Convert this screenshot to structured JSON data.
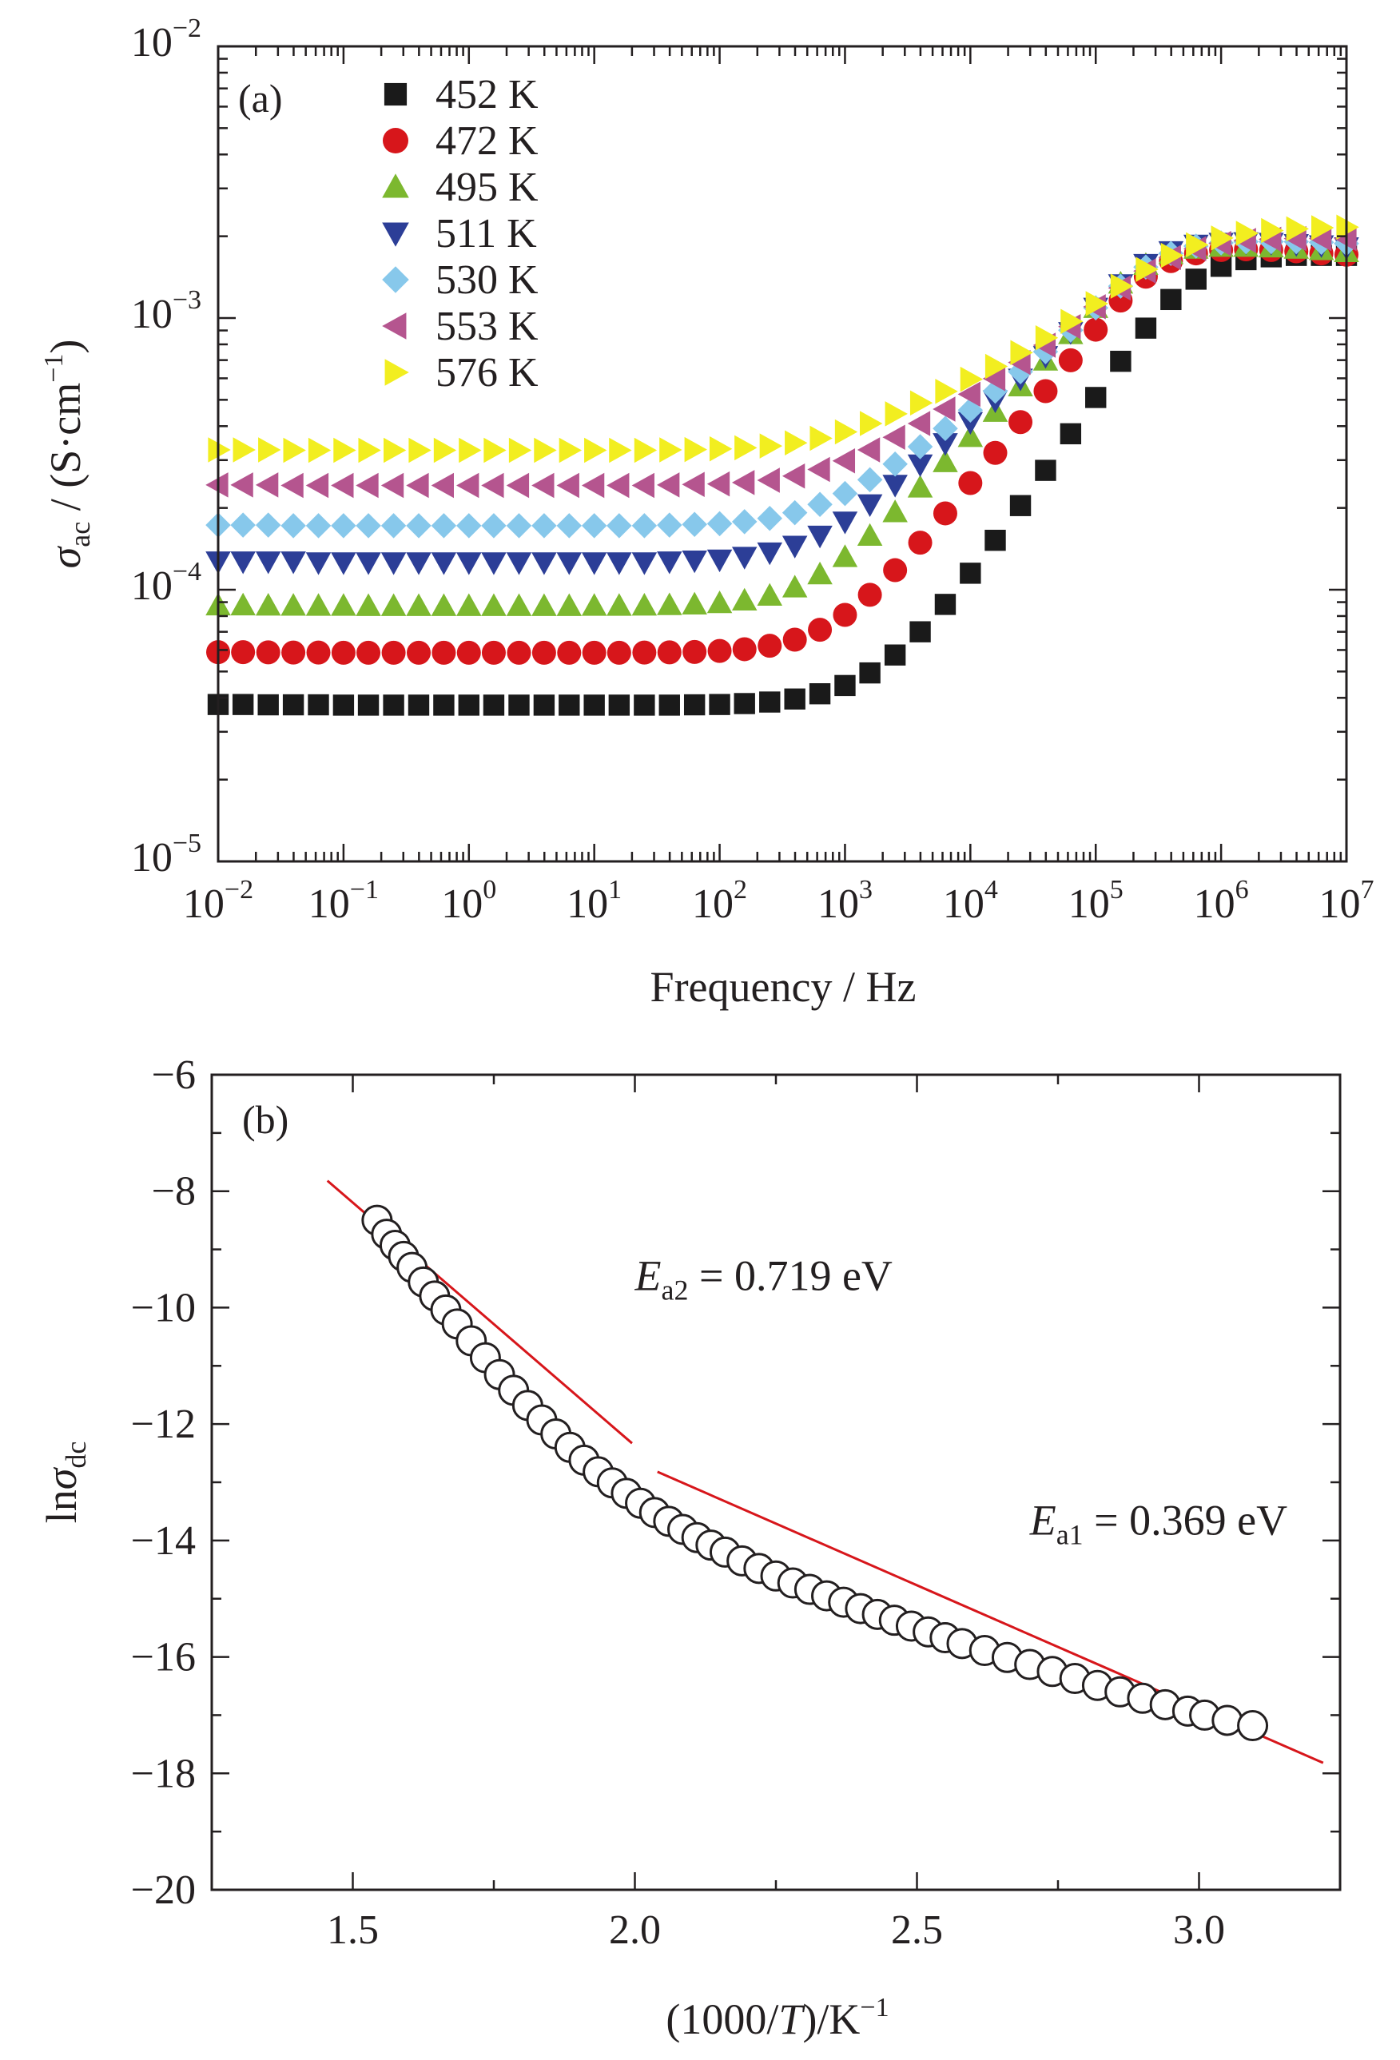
{
  "chart_data": [
    {
      "type": "scatter",
      "panel_label": "(a)",
      "title": "",
      "xlabel": "Frequency / Hz",
      "ylabel_symbol": "σ",
      "ylabel_subscript": "ac",
      "ylabel_unit": " / (S·cm",
      "ylabel_unit_exp": "−1",
      "ylabel_unit_close": ")",
      "xscale": "log",
      "yscale": "log",
      "xlim": [
        0.01,
        10000000
      ],
      "ylim": [
        1e-05,
        0.01
      ],
      "x_tick_labels": [
        {
          "base": "10",
          "exp": "−2"
        },
        {
          "base": "10",
          "exp": "−1"
        },
        {
          "base": "10",
          "exp": "0"
        },
        {
          "base": "10",
          "exp": "1"
        },
        {
          "base": "10",
          "exp": "2"
        },
        {
          "base": "10",
          "exp": "3"
        },
        {
          "base": "10",
          "exp": "4"
        },
        {
          "base": "10",
          "exp": "5"
        },
        {
          "base": "10",
          "exp": "6"
        },
        {
          "base": "10",
          "exp": "7"
        }
      ],
      "y_tick_labels": [
        {
          "base": "10",
          "exp": "−5"
        },
        {
          "base": "10",
          "exp": "−4"
        },
        {
          "base": "10",
          "exp": "−3"
        },
        {
          "base": "10",
          "exp": "−2"
        }
      ],
      "legend_position": "top-left",
      "x": [
        0.01,
        0.0158,
        0.0251,
        0.0398,
        0.0631,
        0.1,
        0.158,
        0.251,
        0.398,
        0.631,
        1,
        1.58,
        2.51,
        3.98,
        6.31,
        10,
        15.8,
        25.1,
        39.8,
        63.1,
        100,
        158,
        251,
        398,
        631,
        1000,
        1580,
        2510,
        3980,
        6310,
        10000,
        15800,
        25100,
        39800,
        63100,
        100000,
        158000,
        251000,
        398000,
        631000,
        1000000,
        1580000,
        2510000,
        3980000,
        6310000,
        10000000
      ],
      "series": [
        {
          "name": "452 K",
          "marker": "square",
          "color": "#1a1a1a",
          "values": [
            3.78e-05,
            3.78e-05,
            3.77e-05,
            3.77e-05,
            3.77e-05,
            3.76e-05,
            3.76e-05,
            3.76e-05,
            3.76e-05,
            3.76e-05,
            3.76e-05,
            3.76e-05,
            3.76e-05,
            3.76e-05,
            3.76e-05,
            3.76e-05,
            3.76e-05,
            3.76e-05,
            3.76e-05,
            3.77e-05,
            3.78e-05,
            3.81e-05,
            3.86e-05,
            3.96e-05,
            4.14e-05,
            4.44e-05,
            4.94e-05,
            5.75e-05,
            7e-05,
            8.83e-05,
            0.000115,
            0.000152,
            0.000204,
            0.000275,
            0.000375,
            0.00051,
            0.000693,
            0.000918,
            0.00117,
            0.00139,
            0.00155,
            0.00164,
            0.00168,
            0.0017,
            0.0017,
            0.0017
          ]
        },
        {
          "name": "472 K",
          "marker": "circle",
          "color": "#d7161b",
          "values": [
            5.89e-05,
            5.89e-05,
            5.88e-05,
            5.87e-05,
            5.87e-05,
            5.86e-05,
            5.86e-05,
            5.86e-05,
            5.86e-05,
            5.86e-05,
            5.86e-05,
            5.86e-05,
            5.86e-05,
            5.86e-05,
            5.86e-05,
            5.86e-05,
            5.86e-05,
            5.87e-05,
            5.88e-05,
            5.9e-05,
            5.95e-05,
            6.04e-05,
            6.22e-05,
            6.55e-05,
            7.12e-05,
            8.08e-05,
            9.58e-05,
            0.000118,
            0.000149,
            0.000191,
            0.000247,
            0.000319,
            0.000414,
            0.000538,
            0.000699,
            0.000906,
            0.00116,
            0.00142,
            0.00162,
            0.00173,
            0.00178,
            0.00179,
            0.00178,
            0.00176,
            0.00173,
            0.00171
          ]
        },
        {
          "name": "495 K",
          "marker": "triangle-up",
          "color": "#7cb82f",
          "values": [
            8.76e-05,
            8.76e-05,
            8.75e-05,
            8.74e-05,
            8.73e-05,
            8.73e-05,
            8.72e-05,
            8.72e-05,
            8.72e-05,
            8.72e-05,
            8.72e-05,
            8.72e-05,
            8.72e-05,
            8.72e-05,
            8.72e-05,
            8.73e-05,
            8.73e-05,
            8.75e-05,
            8.78e-05,
            8.83e-05,
            8.93e-05,
            9.13e-05,
            9.51e-05,
            0.000102,
            0.000114,
            0.000132,
            0.000158,
            0.000193,
            0.000238,
            0.000295,
            0.000365,
            0.000452,
            0.000561,
            0.000698,
            0.000873,
            0.00109,
            0.00134,
            0.00157,
            0.00172,
            0.0018,
            0.00183,
            0.00183,
            0.00182,
            0.0018,
            0.00178,
            0.00175
          ]
        },
        {
          "name": "511 K",
          "marker": "triangle-down",
          "color": "#2c3e97",
          "values": [
            0.000127,
            0.000127,
            0.000127,
            0.000127,
            0.000126,
            0.000126,
            0.000126,
            0.000126,
            0.000126,
            0.000126,
            0.000126,
            0.000126,
            0.000126,
            0.000126,
            0.000126,
            0.000126,
            0.000126,
            0.000126,
            0.000127,
            0.000128,
            0.000129,
            0.000132,
            0.000137,
            0.000145,
            0.000158,
            0.000178,
            0.000206,
            0.000243,
            0.000289,
            0.000346,
            0.000414,
            0.000497,
            0.000598,
            0.000724,
            0.000887,
            0.00109,
            0.00133,
            0.00158,
            0.00176,
            0.00186,
            0.00189,
            0.0019,
            0.00189,
            0.00187,
            0.00185,
            0.00182
          ]
        },
        {
          "name": "530 K",
          "marker": "diamond",
          "color": "#87c8eb",
          "values": [
            0.000173,
            0.000173,
            0.000173,
            0.000172,
            0.000172,
            0.000172,
            0.000172,
            0.000172,
            0.000172,
            0.000172,
            0.000172,
            0.000172,
            0.000172,
            0.000172,
            0.000172,
            0.000172,
            0.000172,
            0.000172,
            0.000173,
            0.000174,
            0.000175,
            0.000178,
            0.000183,
            0.000192,
            0.000206,
            0.000226,
            0.000254,
            0.00029,
            0.000336,
            0.000392,
            0.000458,
            0.000538,
            0.000634,
            0.000752,
            0.000902,
            0.00109,
            0.00131,
            0.00154,
            0.00173,
            0.00184,
            0.00189,
            0.00191,
            0.00191,
            0.00191,
            0.0019,
            0.00188
          ]
        },
        {
          "name": "553 K",
          "marker": "triangle-left",
          "color": "#b5558f",
          "values": [
            0.000243,
            0.000243,
            0.000243,
            0.000242,
            0.000242,
            0.000242,
            0.000242,
            0.000242,
            0.000242,
            0.000242,
            0.000242,
            0.000242,
            0.000242,
            0.000242,
            0.000242,
            0.000242,
            0.000242,
            0.000242,
            0.000243,
            0.000244,
            0.000245,
            0.000248,
            0.000253,
            0.000262,
            0.000277,
            0.000298,
            0.000327,
            0.000364,
            0.000409,
            0.000462,
            0.000524,
            0.000598,
            0.000686,
            0.000794,
            0.00093,
            0.0011,
            0.00129,
            0.00149,
            0.00167,
            0.0018,
            0.00188,
            0.00193,
            0.00195,
            0.00196,
            0.00196,
            0.00196
          ]
        },
        {
          "name": "576 K",
          "marker": "triangle-right",
          "color": "#f2ee20",
          "values": [
            0.000327,
            0.000327,
            0.000327,
            0.000326,
            0.000326,
            0.000326,
            0.000326,
            0.000326,
            0.000326,
            0.000326,
            0.000326,
            0.000326,
            0.000326,
            0.000326,
            0.000326,
            0.000326,
            0.000326,
            0.000326,
            0.000327,
            0.000328,
            0.00033,
            0.000333,
            0.000338,
            0.000347,
            0.000361,
            0.000381,
            0.000409,
            0.000444,
            0.000487,
            0.000537,
            0.000595,
            0.000664,
            0.000746,
            0.000846,
            0.000972,
            0.00113,
            0.00131,
            0.00151,
            0.0017,
            0.00186,
            0.00197,
            0.00205,
            0.0021,
            0.00213,
            0.00215,
            0.00216
          ]
        }
      ]
    },
    {
      "type": "scatter",
      "panel_label": "(b)",
      "title": "",
      "xlabel_pre": "(1000/",
      "xlabel_italic": "T",
      "xlabel_post": ")/K",
      "xlabel_exp": "−1",
      "ylabel_pre": "ln",
      "ylabel_symbol": "σ",
      "ylabel_subscript": "dc",
      "xlim": [
        1.25,
        3.25
      ],
      "ylim": [
        -20,
        -6
      ],
      "x_ticks": [
        1.5,
        2.0,
        2.5,
        3.0
      ],
      "x_tick_labels": [
        "1.5",
        "2.0",
        "2.5",
        "3.0"
      ],
      "y_ticks": [
        -20,
        -18,
        -16,
        -14,
        -12,
        -10,
        -8,
        -6
      ],
      "y_tick_labels": [
        "−20",
        "−18",
        "−16",
        "−14",
        "−12",
        "−10",
        "−8",
        "−6"
      ],
      "series": [
        {
          "name": "",
          "marker": "open-circle",
          "color": "#231f20",
          "x": [
            1.543,
            1.56,
            1.575,
            1.59,
            1.605,
            1.625,
            1.645,
            1.665,
            1.685,
            1.71,
            1.735,
            1.76,
            1.785,
            1.81,
            1.835,
            1.86,
            1.885,
            1.91,
            1.935,
            1.96,
            1.985,
            2.01,
            2.035,
            2.06,
            2.085,
            2.11,
            2.135,
            2.16,
            2.19,
            2.22,
            2.25,
            2.28,
            2.31,
            2.34,
            2.37,
            2.4,
            2.43,
            2.46,
            2.49,
            2.52,
            2.55,
            2.58,
            2.62,
            2.66,
            2.7,
            2.74,
            2.78,
            2.82,
            2.86,
            2.9,
            2.94,
            2.98,
            3.01,
            3.05,
            3.095
          ],
          "y": [
            -8.5,
            -8.74,
            -8.93,
            -9.12,
            -9.31,
            -9.56,
            -9.8,
            -10.04,
            -10.28,
            -10.57,
            -10.86,
            -11.15,
            -11.42,
            -11.68,
            -11.93,
            -12.17,
            -12.4,
            -12.62,
            -12.82,
            -13.01,
            -13.19,
            -13.36,
            -13.52,
            -13.67,
            -13.81,
            -13.95,
            -14.08,
            -14.2,
            -14.35,
            -14.48,
            -14.61,
            -14.73,
            -14.84,
            -14.95,
            -15.06,
            -15.17,
            -15.27,
            -15.37,
            -15.47,
            -15.57,
            -15.67,
            -15.77,
            -15.89,
            -16.01,
            -16.13,
            -16.25,
            -16.37,
            -16.49,
            -16.6,
            -16.71,
            -16.82,
            -16.93,
            -17.0,
            -17.09,
            -17.18
          ]
        },
        {
          "name": "",
          "type": "line",
          "color": "#d7161b",
          "x": [
            1.455,
            1.995
          ],
          "y": [
            -7.82,
            -12.33
          ]
        },
        {
          "name": "",
          "type": "line",
          "color": "#d7161b",
          "x": [
            2.04,
            3.22
          ],
          "y": [
            -12.82,
            -17.82
          ]
        }
      ],
      "annotations": [
        {
          "symbol": "E",
          "subscript": "a2",
          "value": " = 0.719 eV",
          "x": 2.0,
          "y": -9.7
        },
        {
          "symbol": "E",
          "subscript": "a1",
          "value": " = 0.369 eV",
          "x": 2.7,
          "y": -13.9
        }
      ]
    }
  ]
}
